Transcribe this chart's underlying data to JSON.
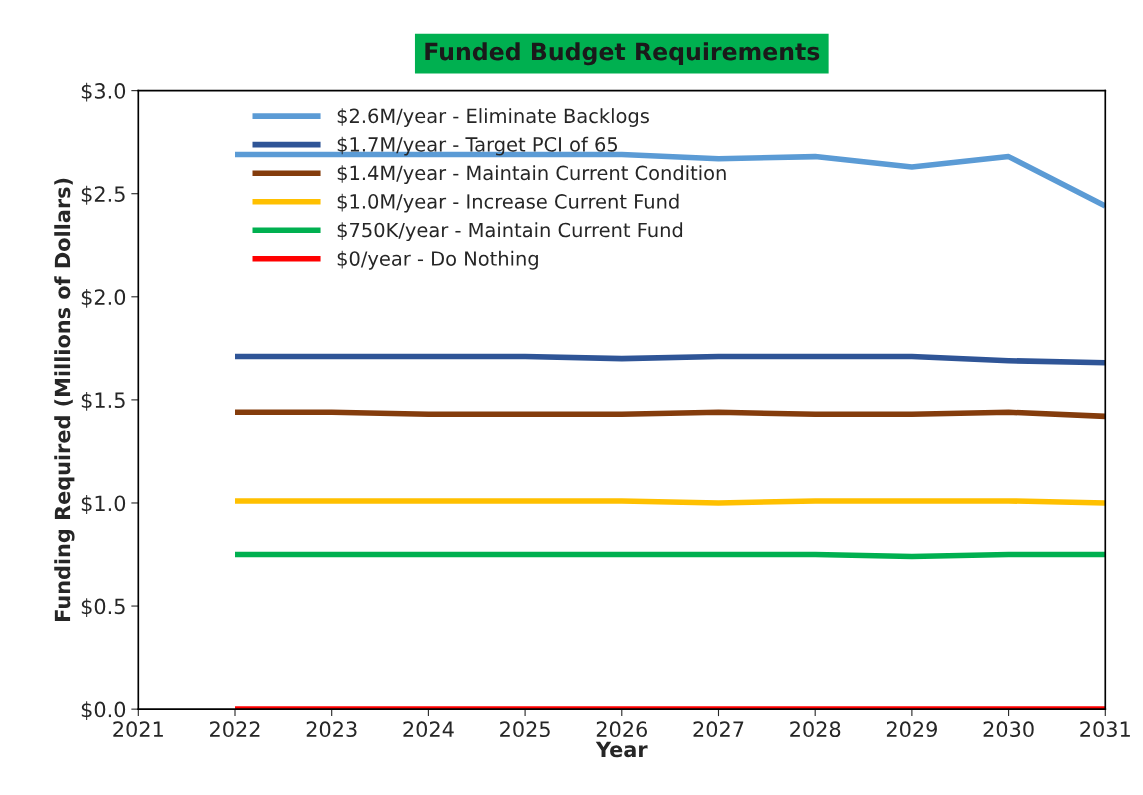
{
  "chart_data": {
    "type": "line",
    "title": "Funded Budget Requirements",
    "xlabel": "Year",
    "ylabel": "Funding Required (Millions of Dollars)",
    "x": [
      2022,
      2023,
      2024,
      2025,
      2026,
      2027,
      2028,
      2029,
      2030,
      2031
    ],
    "series": [
      {
        "name": "$2.6M/year - Eliminate Backlogs",
        "color": "#5b9bd5",
        "values": [
          2.69,
          2.69,
          2.69,
          2.69,
          2.69,
          2.67,
          2.68,
          2.63,
          2.68,
          2.44
        ]
      },
      {
        "name": "$1.7M/year - Target PCI of 65",
        "color": "#2f5597",
        "values": [
          1.71,
          1.71,
          1.71,
          1.71,
          1.7,
          1.71,
          1.71,
          1.71,
          1.69,
          1.68
        ]
      },
      {
        "name": "$1.4M/year - Maintain Current Condition",
        "color": "#843c0c",
        "values": [
          1.44,
          1.44,
          1.43,
          1.43,
          1.43,
          1.44,
          1.43,
          1.43,
          1.44,
          1.42
        ]
      },
      {
        "name": "$1.0M/year - Increase Current Fund",
        "color": "#ffc000",
        "values": [
          1.01,
          1.01,
          1.01,
          1.01,
          1.01,
          1.0,
          1.01,
          1.01,
          1.01,
          1.0
        ]
      },
      {
        "name": "$750K/year - Maintain Current Fund",
        "color": "#00b050",
        "values": [
          0.75,
          0.75,
          0.75,
          0.75,
          0.75,
          0.75,
          0.75,
          0.74,
          0.75,
          0.75
        ]
      },
      {
        "name": "$0/year - Do Nothing",
        "color": "#ff0000",
        "values": [
          0,
          0,
          0,
          0,
          0,
          0,
          0,
          0,
          0,
          0
        ]
      }
    ],
    "xlim": [
      2021,
      2031
    ],
    "xticks": [
      2021,
      2022,
      2023,
      2024,
      2025,
      2026,
      2027,
      2028,
      2029,
      2030,
      2031
    ],
    "ylim": [
      0,
      3.0
    ],
    "yticks": [
      {
        "value": 0,
        "label": "$0.0"
      },
      {
        "value": 0.5,
        "label": "$0.5"
      },
      {
        "value": 1.0,
        "label": "$1.0"
      },
      {
        "value": 1.5,
        "label": "$1.5"
      },
      {
        "value": 2.0,
        "label": "$2.0"
      },
      {
        "value": 2.5,
        "label": "$2.5"
      },
      {
        "value": 3.0,
        "label": "$3.0"
      }
    ],
    "grid": false,
    "legend": "top left",
    "marker": "none",
    "line_style": "solid"
  }
}
